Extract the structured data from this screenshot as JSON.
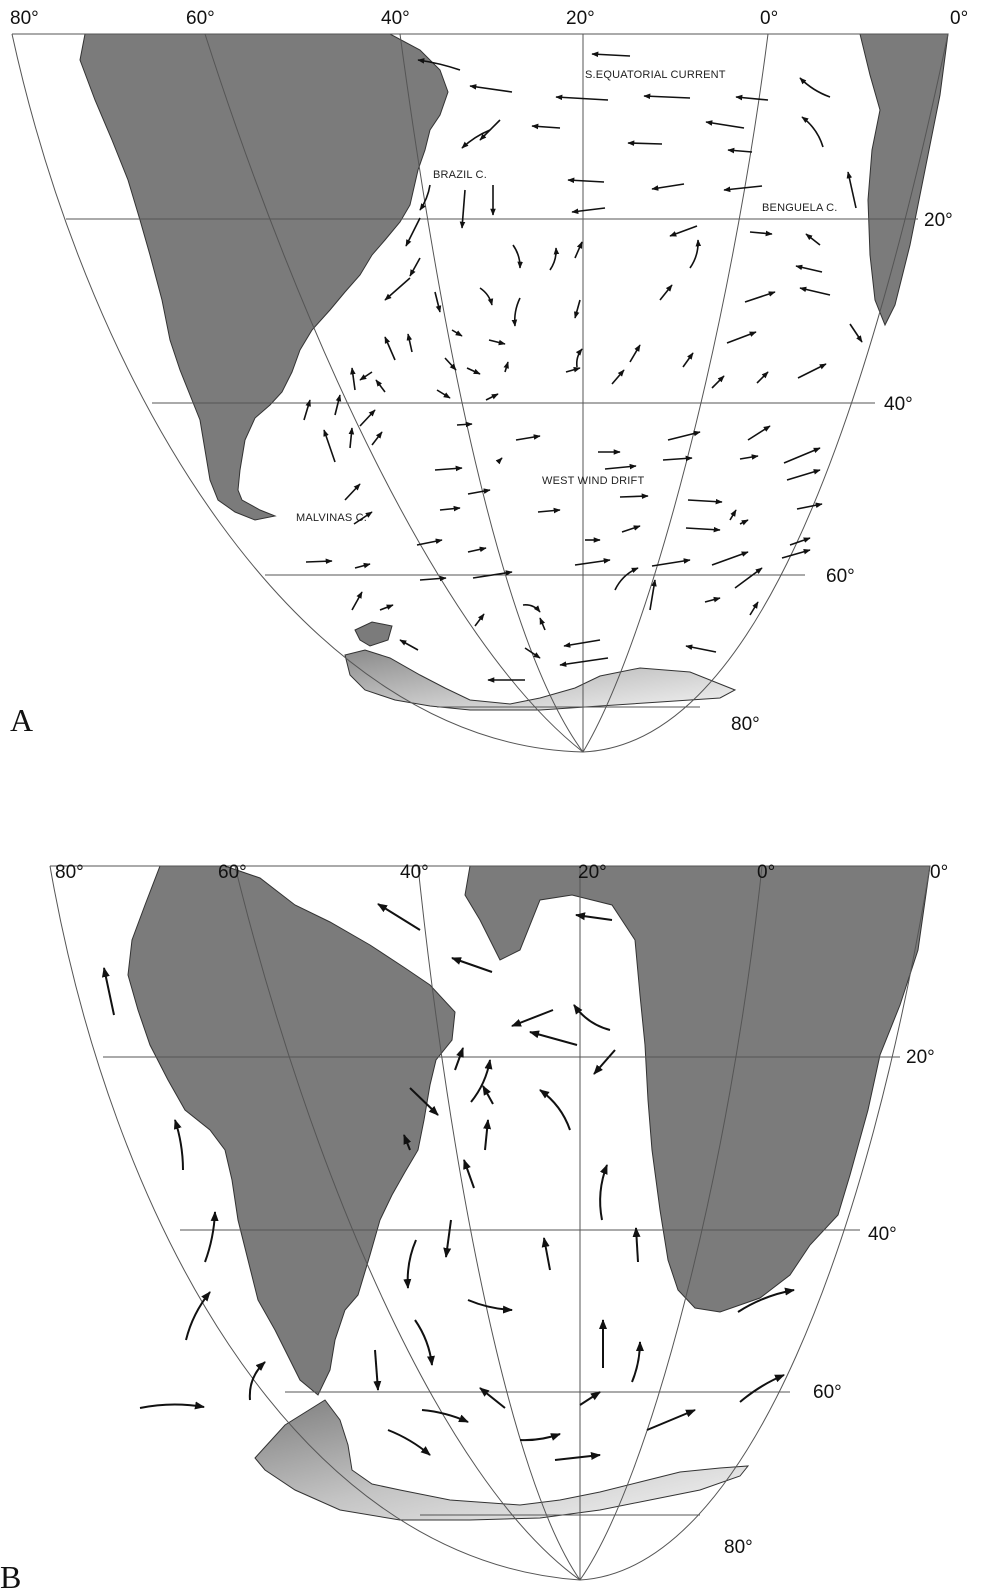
{
  "panels": [
    {
      "label": "A",
      "longitude_labels": [
        "80°",
        "60°",
        "40°",
        "20°",
        "0°",
        "0°"
      ],
      "latitude_labels": [
        "20°",
        "40°",
        "60°",
        "80°"
      ],
      "current_labels": [
        "S.EQUATORIAL CURRENT",
        "BRAZIL C.",
        "BENGUELA C.",
        "WEST WIND DRIFT",
        "MALVINAS C."
      ]
    },
    {
      "label": "B",
      "longitude_labels": [
        "80°",
        "60°",
        "40°",
        "20°",
        "0°",
        "0°"
      ],
      "latitude_labels": [
        "20°",
        "40°",
        "60°",
        "80°"
      ]
    }
  ]
}
